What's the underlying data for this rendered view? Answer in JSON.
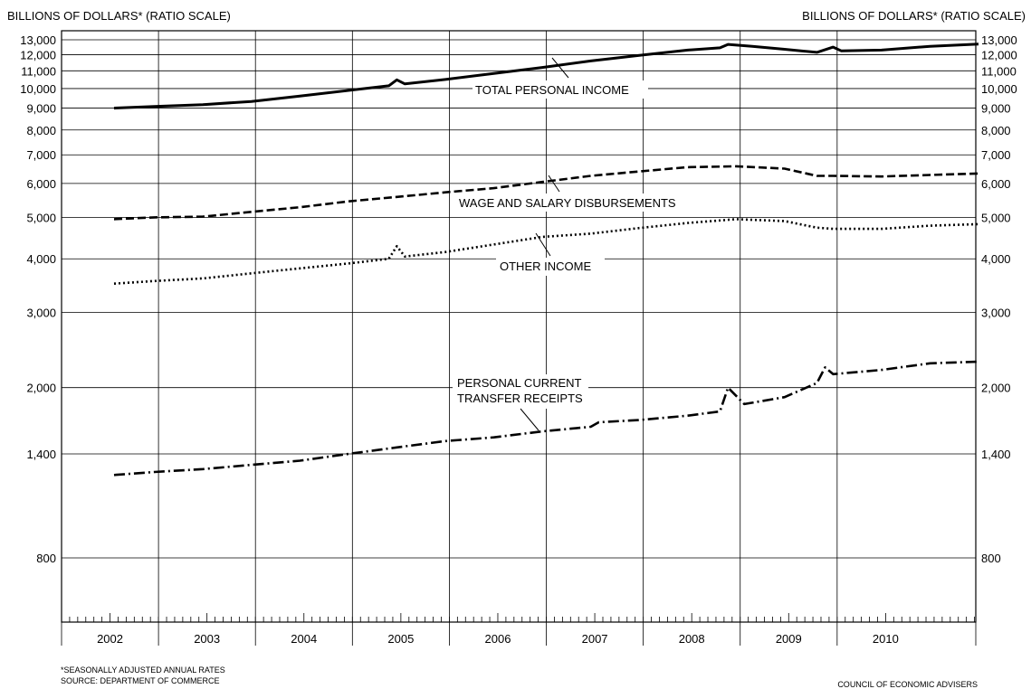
{
  "chart_data": {
    "type": "line",
    "title": "",
    "ylabel_left": "BILLIONS OF DOLLARS* (RATIO SCALE)",
    "ylabel_right": "BILLIONS OF DOLLARS* (RATIO SCALE)",
    "y_scale": "log",
    "ylim": [
      650,
      13000
    ],
    "y_ticks": [
      800,
      1400,
      2000,
      3000,
      4000,
      5000,
      6000,
      7000,
      8000,
      9000,
      10000,
      11000,
      12000,
      13000
    ],
    "y_tick_labels": [
      "800",
      "1,400",
      "2,000",
      "3,000",
      "4,000",
      "5,000",
      "6,000",
      "7,000",
      "8,000",
      "9,000",
      "10,000",
      "11,000",
      "12,000",
      "13,000"
    ],
    "x_categories": [
      "2002",
      "2003",
      "2004",
      "2005",
      "2006",
      "2007",
      "2008",
      "2009",
      "2010"
    ],
    "grid": true,
    "series": [
      {
        "name": "TOTAL PERSONAL INCOME",
        "style": "solid",
        "points": [
          [
            "2002-01",
            9000
          ],
          [
            "2002-06",
            9080
          ],
          [
            "2002-12",
            9170
          ],
          [
            "2003-06",
            9330
          ],
          [
            "2003-12",
            9600
          ],
          [
            "2004-06",
            9900
          ],
          [
            "2004-11",
            10150
          ],
          [
            "2004-12",
            10480
          ],
          [
            "2005-01",
            10250
          ],
          [
            "2005-06",
            10500
          ],
          [
            "2005-12",
            10850
          ],
          [
            "2006-06",
            11200
          ],
          [
            "2006-12",
            11600
          ],
          [
            "2007-06",
            11950
          ],
          [
            "2007-12",
            12300
          ],
          [
            "2008-04",
            12450
          ],
          [
            "2008-05",
            12680
          ],
          [
            "2008-08",
            12550
          ],
          [
            "2008-12",
            12350
          ],
          [
            "2009-04",
            12150
          ],
          [
            "2009-06",
            12500
          ],
          [
            "2009-07",
            12250
          ],
          [
            "2009-12",
            12300
          ],
          [
            "2010-06",
            12550
          ],
          [
            "2010-12",
            12700
          ]
        ]
      },
      {
        "name": "WAGE AND SALARY DISBURSEMENTS",
        "style": "dashed",
        "points": [
          [
            "2002-01",
            4950
          ],
          [
            "2002-06",
            5000
          ],
          [
            "2002-12",
            5020
          ],
          [
            "2003-06",
            5150
          ],
          [
            "2003-12",
            5280
          ],
          [
            "2004-06",
            5450
          ],
          [
            "2004-12",
            5580
          ],
          [
            "2005-06",
            5720
          ],
          [
            "2005-12",
            5850
          ],
          [
            "2006-06",
            6050
          ],
          [
            "2006-12",
            6250
          ],
          [
            "2007-06",
            6400
          ],
          [
            "2007-12",
            6550
          ],
          [
            "2008-06",
            6580
          ],
          [
            "2008-12",
            6500
          ],
          [
            "2009-04",
            6250
          ],
          [
            "2009-06",
            6250
          ],
          [
            "2009-12",
            6230
          ],
          [
            "2010-06",
            6280
          ],
          [
            "2010-12",
            6330
          ]
        ]
      },
      {
        "name": "OTHER INCOME",
        "style": "dotted",
        "points": [
          [
            "2002-01",
            3500
          ],
          [
            "2002-06",
            3550
          ],
          [
            "2002-12",
            3600
          ],
          [
            "2003-06",
            3700
          ],
          [
            "2003-12",
            3800
          ],
          [
            "2004-06",
            3900
          ],
          [
            "2004-11",
            4000
          ],
          [
            "2004-12",
            4280
          ],
          [
            "2005-01",
            4050
          ],
          [
            "2005-06",
            4150
          ],
          [
            "2005-12",
            4320
          ],
          [
            "2006-06",
            4500
          ],
          [
            "2006-12",
            4580
          ],
          [
            "2007-06",
            4720
          ],
          [
            "2007-12",
            4850
          ],
          [
            "2008-06",
            4950
          ],
          [
            "2008-12",
            4900
          ],
          [
            "2009-04",
            4730
          ],
          [
            "2009-06",
            4700
          ],
          [
            "2009-12",
            4700
          ],
          [
            "2010-06",
            4780
          ],
          [
            "2010-12",
            4820
          ]
        ]
      },
      {
        "name": "PERSONAL CURRENT TRANSFER RECEIPTS",
        "style": "dashdot",
        "points": [
          [
            "2002-01",
            1250
          ],
          [
            "2002-06",
            1270
          ],
          [
            "2002-12",
            1290
          ],
          [
            "2003-06",
            1320
          ],
          [
            "2003-12",
            1350
          ],
          [
            "2004-06",
            1400
          ],
          [
            "2004-12",
            1450
          ],
          [
            "2005-06",
            1500
          ],
          [
            "2005-12",
            1530
          ],
          [
            "2006-06",
            1580
          ],
          [
            "2006-12",
            1620
          ],
          [
            "2007-01",
            1660
          ],
          [
            "2007-06",
            1680
          ],
          [
            "2007-12",
            1720
          ],
          [
            "2008-04",
            1760
          ],
          [
            "2008-05",
            2000
          ],
          [
            "2008-07",
            1830
          ],
          [
            "2008-12",
            1900
          ],
          [
            "2009-04",
            2050
          ],
          [
            "2009-05",
            2230
          ],
          [
            "2009-06",
            2150
          ],
          [
            "2009-12",
            2200
          ],
          [
            "2010-06",
            2280
          ],
          [
            "2010-12",
            2300
          ]
        ]
      }
    ],
    "labels": {
      "total": "TOTAL PERSONAL INCOME",
      "wage": "WAGE AND SALARY DISBURSEMENTS",
      "other": "OTHER INCOME",
      "transfer_1": "PERSONAL CURRENT",
      "transfer_2": "TRANSFER RECEIPTS"
    }
  },
  "footnote_1": "*SEASONALLY ADJUSTED ANNUAL RATES",
  "footnote_2": "SOURCE: DEPARTMENT OF COMMERCE",
  "credit": "COUNCIL OF ECONOMIC ADVISERS"
}
